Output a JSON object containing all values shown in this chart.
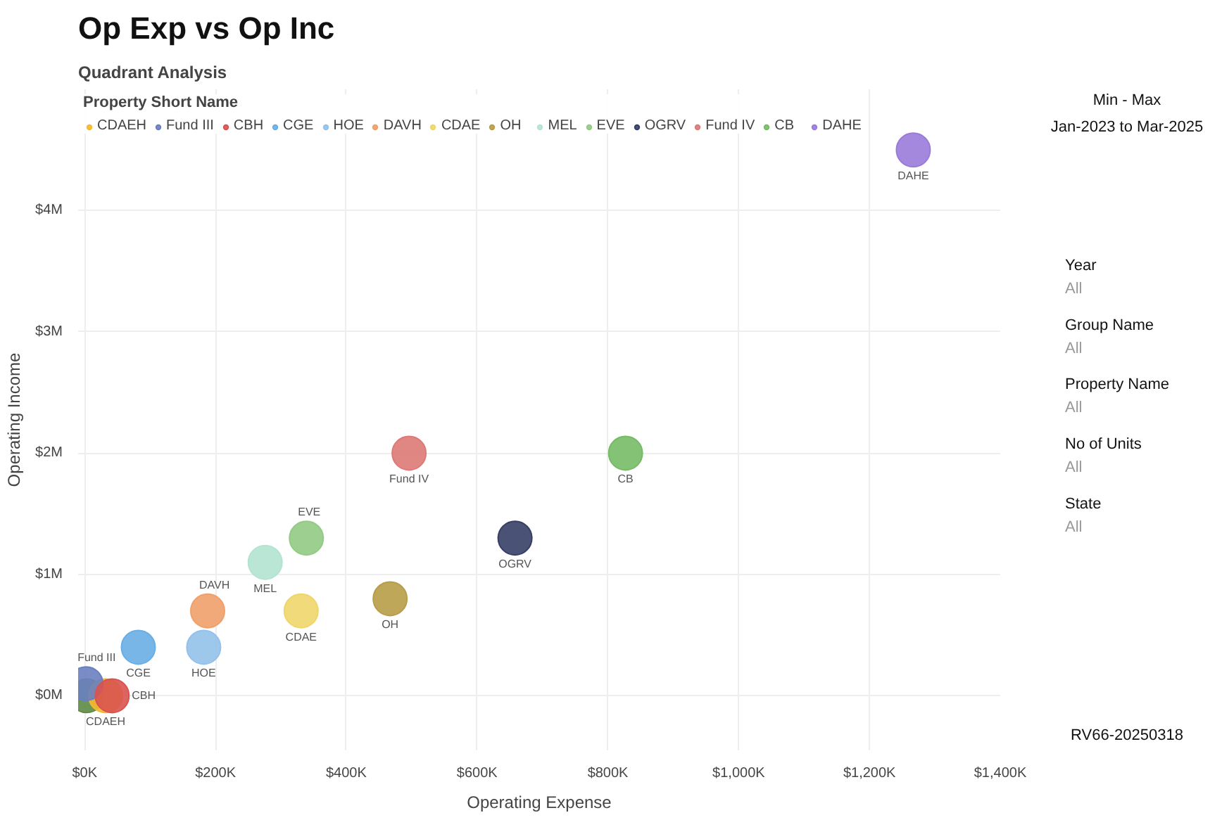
{
  "chart_data": {
    "type": "scatter",
    "title": "Op Exp vs Op Inc",
    "subtitle": "Quadrant Analysis",
    "xlabel": "Operating Expense",
    "ylabel": "Operating Income",
    "legend_title": "Property Short Name",
    "xlim": [
      -10,
      1400
    ],
    "ylim": [
      -0.45,
      5.0
    ],
    "xticks": [
      {
        "value": 0,
        "label": "$0K"
      },
      {
        "value": 200,
        "label": "$200K"
      },
      {
        "value": 400,
        "label": "$400K"
      },
      {
        "value": 600,
        "label": "$600K"
      },
      {
        "value": 800,
        "label": "$800K"
      },
      {
        "value": 1000,
        "label": "$1,000K"
      },
      {
        "value": 1200,
        "label": "$1,200K"
      },
      {
        "value": 1400,
        "label": "$1,400K"
      }
    ],
    "yticks": [
      {
        "value": 0,
        "label": "$0M"
      },
      {
        "value": 1,
        "label": "$1M"
      },
      {
        "value": 2,
        "label": "$2M"
      },
      {
        "value": 3,
        "label": "$3M"
      },
      {
        "value": 4,
        "label": "$4M"
      }
    ],
    "grid": true,
    "legend": "top left",
    "marker": "circle",
    "series": [
      {
        "color": "#5d8a45",
        "x": [
          3
        ],
        "values": [
          0.0
        ]
      },
      {
        "name": "CDAEH",
        "color": "#f5b830",
        "x": [
          32
        ],
        "values": [
          0.0
        ]
      },
      {
        "name": "Fund III",
        "color": "#6a7fc0",
        "x": [
          2
        ],
        "values": [
          0.1
        ]
      },
      {
        "name": "CBH",
        "color": "#d9534f",
        "x": [
          42
        ],
        "values": [
          0.0
        ]
      },
      {
        "name": "CGE",
        "color": "#6aaee6",
        "x": [
          82
        ],
        "values": [
          0.4
        ]
      },
      {
        "name": "HOE",
        "color": "#94c1ea",
        "x": [
          182
        ],
        "values": [
          0.4
        ]
      },
      {
        "name": "DAVH",
        "color": "#f0a06a",
        "x": [
          188
        ],
        "values": [
          0.7
        ]
      },
      {
        "name": "CDAE",
        "color": "#eed66a",
        "x": [
          331
        ],
        "values": [
          0.7
        ]
      },
      {
        "name": "OH",
        "color": "#b89d48",
        "x": [
          467
        ],
        "values": [
          0.8
        ]
      },
      {
        "name": "MEL",
        "color": "#b3e4d0",
        "x": [
          276
        ],
        "values": [
          1.1
        ]
      },
      {
        "name": "EVE",
        "color": "#92cb84",
        "x": [
          339
        ],
        "values": [
          1.3
        ]
      },
      {
        "name": "OGRV",
        "color": "#363f66",
        "x": [
          658
        ],
        "values": [
          1.3
        ]
      },
      {
        "name": "Fund IV",
        "color": "#dd7a76",
        "x": [
          496
        ],
        "values": [
          2.0
        ]
      },
      {
        "name": "CB",
        "color": "#77bb66",
        "x": [
          827
        ],
        "values": [
          2.0
        ]
      },
      {
        "name": "DAHE",
        "color": "#9a7bd9",
        "x": [
          1267
        ],
        "values": [
          4.5
        ]
      }
    ],
    "annotations": [
      "Min - Max",
      "Jan-2023 to Mar-2025",
      "Year",
      "All",
      "Group Name",
      "All",
      "Property Name",
      "All",
      "No of Units",
      "All",
      "State",
      "All",
      "RV66-20250318"
    ]
  }
}
